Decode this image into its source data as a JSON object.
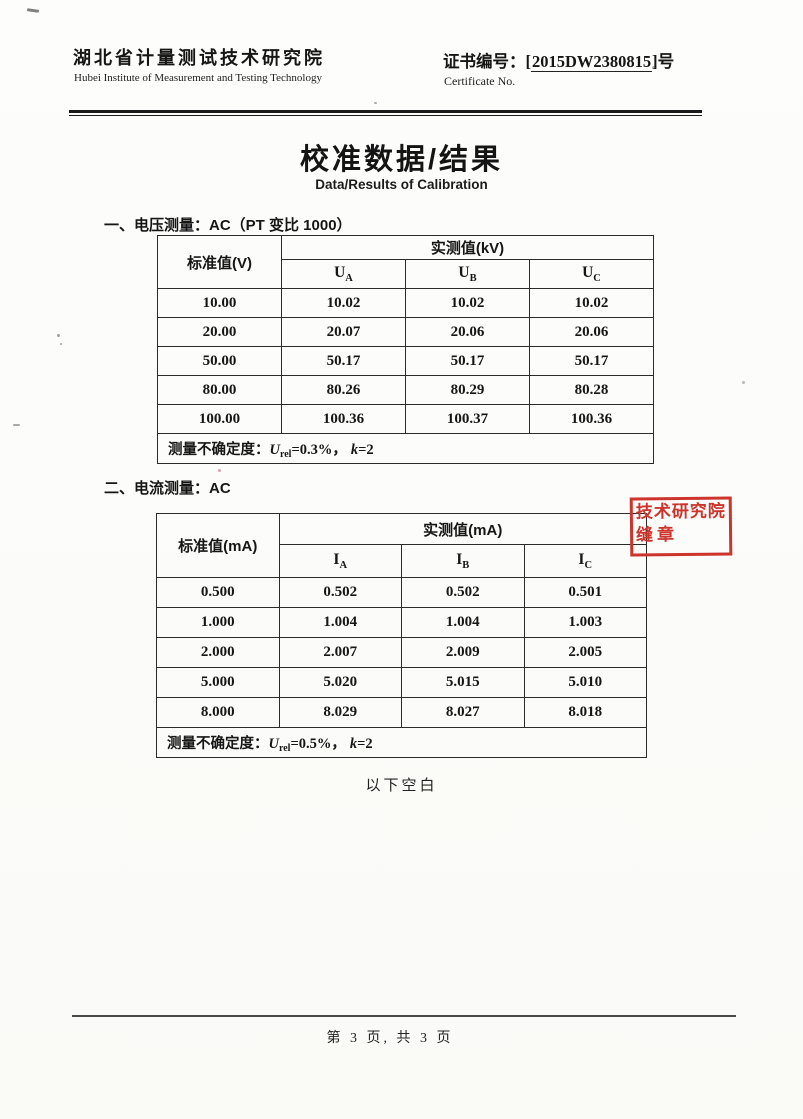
{
  "colors": {
    "stamp_red": "#cd342c",
    "ink": "#1e1e1e"
  },
  "header": {
    "org_cn": "湖北省计量测试技术研究院",
    "org_en": "Hubei Institute of Measurement and Testing Technology",
    "cert_label": "证书编号：",
    "bracket_open": "[",
    "cert_number": "2015DW2380815",
    "bracket_close": "]",
    "cert_suffix": "号",
    "cert_en": "Certificate No."
  },
  "title": {
    "cn": "校准数据/结果",
    "en": "Data/Results of Calibration"
  },
  "section1": {
    "heading": "一、电压测量：AC（PT 变比 1000）",
    "table": {
      "std_header": "标准值(V)",
      "meas_header": "实测值(kV)",
      "sym": "U",
      "phases": [
        "A",
        "B",
        "C"
      ],
      "rows": [
        {
          "std": "10.00",
          "a": "10.02",
          "b": "10.02",
          "c": "10.02"
        },
        {
          "std": "20.00",
          "a": "20.07",
          "b": "20.06",
          "c": "20.06"
        },
        {
          "std": "50.00",
          "a": "50.17",
          "b": "50.17",
          "c": "50.17"
        },
        {
          "std": "80.00",
          "a": "80.26",
          "b": "80.29",
          "c": "80.28"
        },
        {
          "std": "100.00",
          "a": "100.36",
          "b": "100.37",
          "c": "100.36"
        }
      ],
      "unc": {
        "prefix": "测量不确定度：",
        "sym": "U",
        "sub": "rel",
        "val": "=0.3%，",
        "ksym": "k",
        "kval": "=2"
      }
    }
  },
  "section2": {
    "heading": "二、电流测量：AC",
    "table": {
      "std_header": "标准值(mA)",
      "meas_header": "实测值(mA)",
      "sym": "I",
      "phases": [
        "A",
        "B",
        "C"
      ],
      "rows": [
        {
          "std": "0.500",
          "a": "0.502",
          "b": "0.502",
          "c": "0.501"
        },
        {
          "std": "1.000",
          "a": "1.004",
          "b": "1.004",
          "c": "1.003"
        },
        {
          "std": "2.000",
          "a": "2.007",
          "b": "2.009",
          "c": "2.005"
        },
        {
          "std": "5.000",
          "a": "5.020",
          "b": "5.015",
          "c": "5.010"
        },
        {
          "std": "8.000",
          "a": "8.029",
          "b": "8.027",
          "c": "8.018"
        }
      ],
      "unc": {
        "prefix": "测量不确定度：",
        "sym": "U",
        "sub": "rel",
        "val": "=0.5%，",
        "ksym": "k",
        "kval": "=2"
      }
    }
  },
  "stamp": {
    "line1": "技术研究院",
    "line2": "缝章"
  },
  "notes": {
    "blank": "以下空白"
  },
  "footer": {
    "page_text": "第 3 页, 共 3 页"
  }
}
